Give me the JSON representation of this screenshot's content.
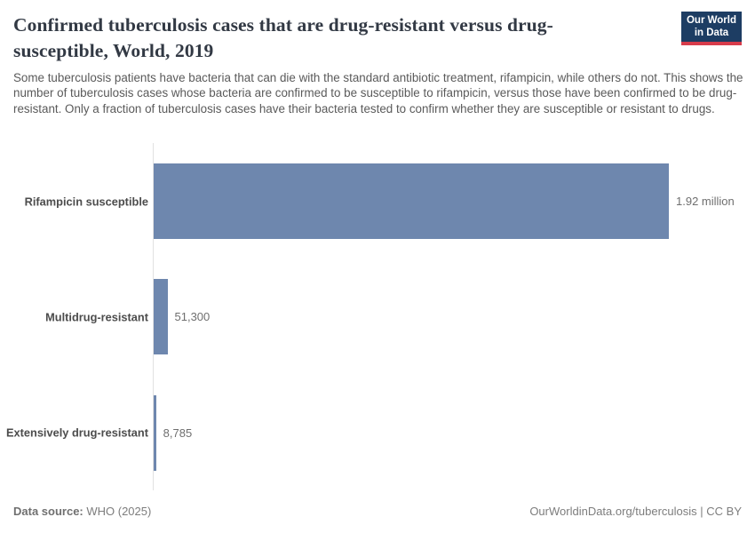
{
  "header": {
    "title": "Confirmed tuberculosis cases that are drug-resistant versus drug-susceptible, World, 2019",
    "subtitle": "Some tuberculosis patients have bacteria that can die with the standard antibiotic treatment, rifampicin, while others do not. This shows the number of tuberculosis cases whose bacteria are confirmed to be susceptible to rifampicin, versus those have been confirmed to be drug-resistant. Only a fraction of tuberculosis cases have their bacteria tested to confirm whether they are susceptible or resistant to drugs.",
    "logo": {
      "line1": "Our World",
      "line2": "in Data",
      "bg_color": "#1d3d63",
      "accent_color": "#d73c4b"
    }
  },
  "chart_data": {
    "type": "bar",
    "orientation": "horizontal",
    "title": "Confirmed tuberculosis cases that are drug-resistant versus drug-susceptible, World, 2019",
    "categories": [
      "Rifampicin susceptible",
      "Multidrug-resistant",
      "Extensively drug-resistant"
    ],
    "values": [
      1920000,
      51300,
      8785
    ],
    "value_labels": [
      "1.92 million",
      "51,300",
      "8,785"
    ],
    "xlim": [
      0,
      1920000
    ],
    "bar_color": "#6e87ae",
    "axis_color": "#e2e2e2",
    "grid": false,
    "legend": "none"
  },
  "footer": {
    "data_source_label": "Data source:",
    "data_source_value": " WHO (2025)",
    "citation_link": "OurWorldinData.org/tuberculosis",
    "citation_separator": " | ",
    "citation_license": "CC BY"
  }
}
